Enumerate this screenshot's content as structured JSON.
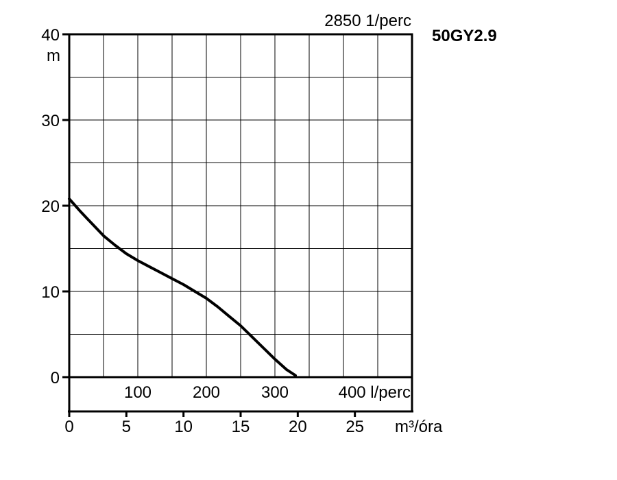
{
  "chart_data": {
    "type": "line",
    "title": "",
    "model_label": "50GY2.9",
    "speed_label": "2850 1/perc",
    "ylabel": "m",
    "ylim": [
      0,
      40
    ],
    "y_ticks": [
      {
        "value": 0,
        "label": "0"
      },
      {
        "value": 10,
        "label": "10"
      },
      {
        "value": 20,
        "label": "20"
      },
      {
        "value": 30,
        "label": "30"
      },
      {
        "value": 40,
        "label": "40"
      }
    ],
    "xlim_lpm": [
      0,
      500
    ],
    "x_ticks_lpm": [
      {
        "value": 100,
        "label": "100"
      },
      {
        "value": 200,
        "label": "200"
      },
      {
        "value": 300,
        "label": "300"
      },
      {
        "value": 400,
        "label": "400 l/perc"
      }
    ],
    "xlim_m3h": [
      0,
      30
    ],
    "xlabel_m3h": "m³/óra",
    "x_ticks_m3h": [
      {
        "value": 0,
        "label": "0"
      },
      {
        "value": 5,
        "label": "5"
      },
      {
        "value": 10,
        "label": "10"
      },
      {
        "value": 15,
        "label": "15"
      },
      {
        "value": 20,
        "label": "20"
      },
      {
        "value": 25,
        "label": "25"
      }
    ],
    "grid": true,
    "series": [
      {
        "color": "#000000",
        "x_m3h": [
          0,
          1,
          2,
          3,
          4,
          5,
          6,
          7,
          8,
          9,
          10,
          11,
          12,
          13,
          14,
          15,
          16,
          17,
          18,
          19,
          19.8
        ],
        "y_m": [
          20.8,
          19.3,
          17.9,
          16.5,
          15.4,
          14.4,
          13.6,
          12.9,
          12.2,
          11.5,
          10.8,
          10.0,
          9.2,
          8.2,
          7.1,
          6.0,
          4.7,
          3.4,
          2.1,
          0.9,
          0.2
        ]
      }
    ]
  }
}
